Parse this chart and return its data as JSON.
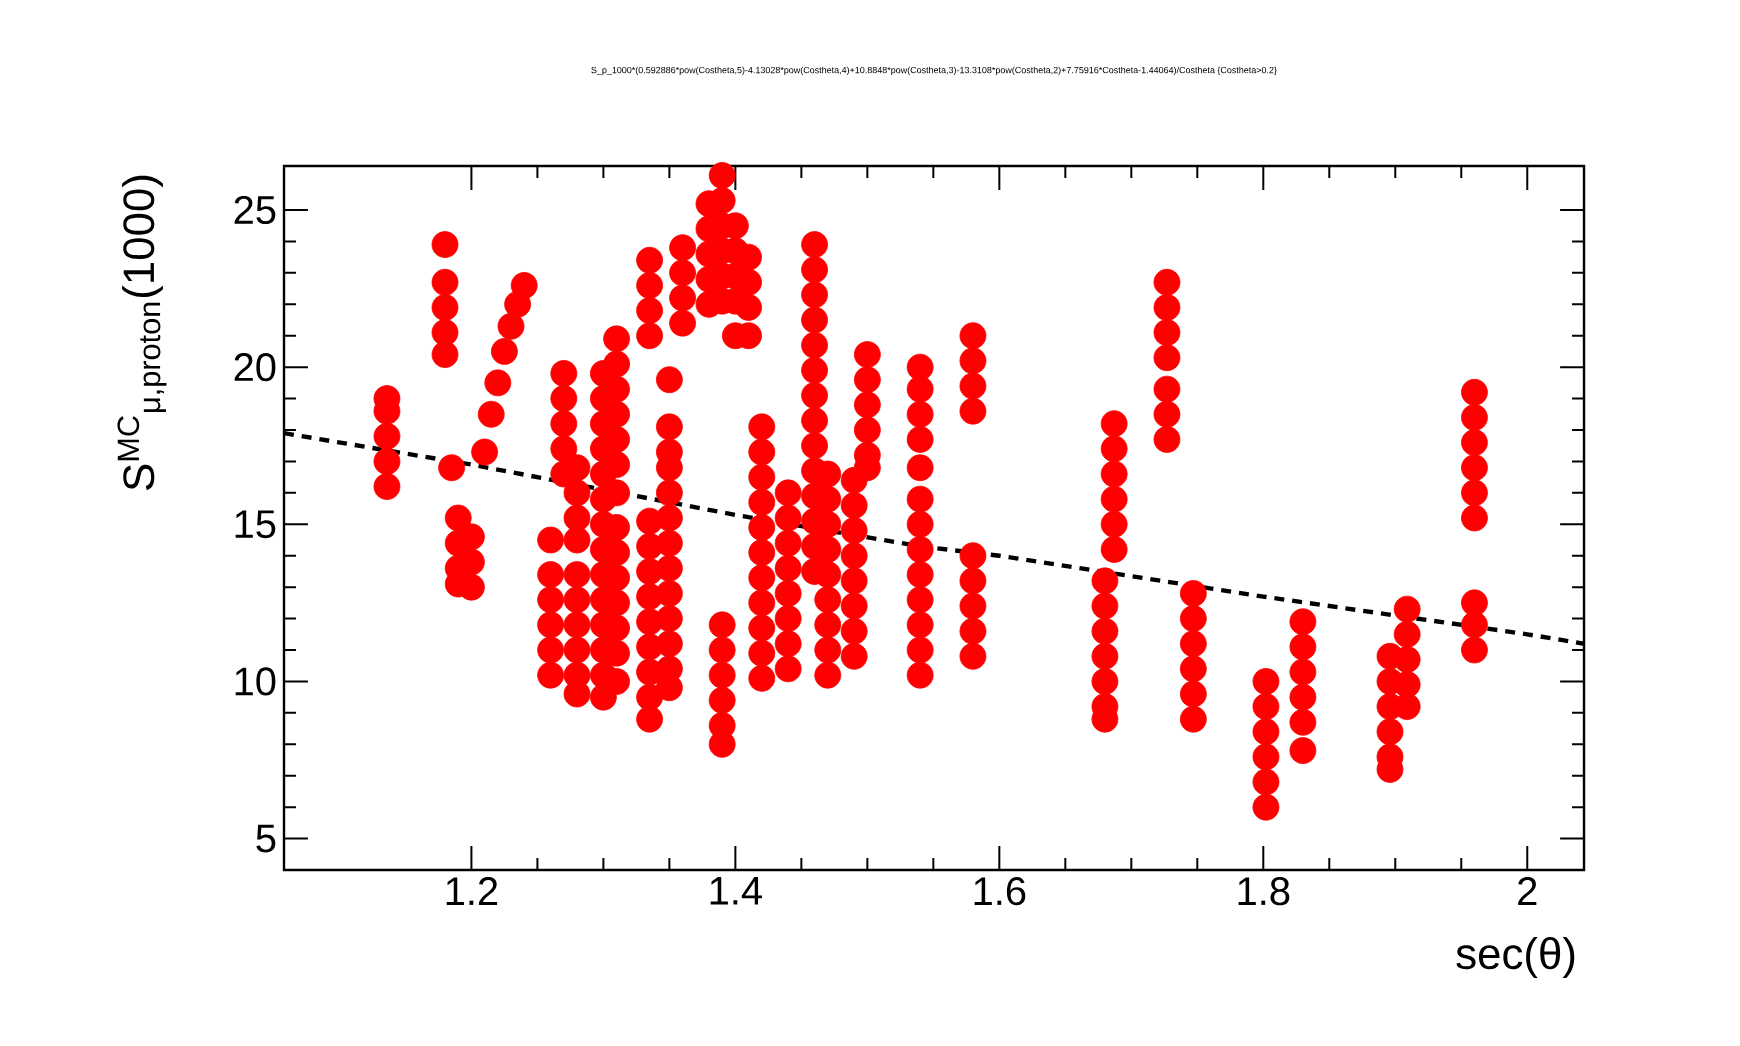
{
  "chart_data": {
    "type": "scatter",
    "title": "S_p_1000*(0.592886*pow(Costheta,5)-4.13028*pow(Costheta,4)+10.8848*pow(Costheta,3)-13.3108*pow(Costheta,2)+7.75916*Costheta-1.44064)/Costheta {Costheta>0.2}",
    "xlabel": "sec(θ)",
    "ylabel": "S$^{MC}$$_{μ,proton}$(1000)",
    "xlim": [
      1.058,
      2.043
    ],
    "ylim": [
      4,
      26.4
    ],
    "xticks": [
      1.2,
      1.4,
      1.6,
      1.8,
      2
    ],
    "yticks": [
      5,
      10,
      15,
      20,
      25
    ],
    "series": [
      {
        "color": "#ff0000",
        "marker": "circle",
        "x": [
          1.136,
          1.136,
          1.136,
          1.136,
          1.136,
          1.18,
          1.18,
          1.18,
          1.18,
          1.18,
          1.185,
          1.19,
          1.19,
          1.19,
          1.19,
          1.2,
          1.2,
          1.2,
          1.21,
          1.215,
          1.22,
          1.225,
          1.23,
          1.235,
          1.24,
          1.26,
          1.26,
          1.26,
          1.26,
          1.26,
          1.26,
          1.27,
          1.27,
          1.27,
          1.27,
          1.27,
          1.28,
          1.28,
          1.28,
          1.28,
          1.28,
          1.28,
          1.28,
          1.28,
          1.28,
          1.28,
          1.3,
          1.3,
          1.3,
          1.3,
          1.3,
          1.3,
          1.3,
          1.3,
          1.3,
          1.3,
          1.3,
          1.3,
          1.3,
          1.3,
          1.31,
          1.31,
          1.31,
          1.31,
          1.31,
          1.31,
          1.31,
          1.31,
          1.31,
          1.31,
          1.31,
          1.31,
          1.31,
          1.31,
          1.335,
          1.335,
          1.335,
          1.335,
          1.335,
          1.335,
          1.335,
          1.335,
          1.335,
          1.335,
          1.335,
          1.335,
          1.335,
          1.35,
          1.35,
          1.35,
          1.35,
          1.35,
          1.35,
          1.35,
          1.35,
          1.35,
          1.35,
          1.35,
          1.35,
          1.35,
          1.36,
          1.36,
          1.36,
          1.36,
          1.38,
          1.38,
          1.38,
          1.38,
          1.38,
          1.39,
          1.39,
          1.39,
          1.39,
          1.39,
          1.39,
          1.39,
          1.39,
          1.39,
          1.39,
          1.39,
          1.39,
          1.4,
          1.4,
          1.4,
          1.4,
          1.4,
          1.41,
          1.41,
          1.41,
          1.41,
          1.42,
          1.42,
          1.42,
          1.42,
          1.42,
          1.42,
          1.42,
          1.42,
          1.42,
          1.42,
          1.42,
          1.44,
          1.44,
          1.44,
          1.44,
          1.44,
          1.44,
          1.44,
          1.44,
          1.46,
          1.46,
          1.46,
          1.46,
          1.46,
          1.46,
          1.46,
          1.46,
          1.46,
          1.46,
          1.46,
          1.46,
          1.46,
          1.46,
          1.47,
          1.47,
          1.47,
          1.47,
          1.47,
          1.47,
          1.47,
          1.47,
          1.47,
          1.49,
          1.49,
          1.49,
          1.49,
          1.49,
          1.49,
          1.49,
          1.49,
          1.5,
          1.5,
          1.5,
          1.5,
          1.5,
          1.5,
          1.54,
          1.54,
          1.54,
          1.54,
          1.54,
          1.54,
          1.54,
          1.54,
          1.54,
          1.54,
          1.54,
          1.54,
          1.54,
          1.58,
          1.58,
          1.58,
          1.58,
          1.58,
          1.58,
          1.58,
          1.58,
          1.58,
          1.687,
          1.687,
          1.687,
          1.687,
          1.687,
          1.687,
          1.68,
          1.68,
          1.68,
          1.68,
          1.68,
          1.68,
          1.68,
          1.727,
          1.727,
          1.727,
          1.727,
          1.727,
          1.727,
          1.727,
          1.747,
          1.747,
          1.747,
          1.747,
          1.747,
          1.747,
          1.802,
          1.802,
          1.802,
          1.802,
          1.802,
          1.802,
          1.83,
          1.83,
          1.83,
          1.83,
          1.83,
          1.83,
          1.896,
          1.896,
          1.896,
          1.896,
          1.896,
          1.896,
          1.909,
          1.909,
          1.909,
          1.909,
          1.909,
          1.96,
          1.96,
          1.96,
          1.96,
          1.96,
          1.96,
          1.96,
          1.96,
          1.96
        ],
        "values": [
          16.2,
          17.0,
          17.8,
          18.6,
          19.0,
          23.9,
          22.7,
          21.9,
          21.1,
          20.4,
          16.8,
          15.2,
          14.4,
          13.6,
          13.1,
          14.6,
          13.8,
          13.0,
          17.3,
          18.5,
          19.5,
          20.5,
          21.3,
          22.0,
          22.6,
          14.5,
          13.4,
          12.6,
          11.8,
          11.0,
          10.2,
          19.8,
          19.0,
          18.2,
          17.4,
          16.6,
          16.8,
          16.0,
          15.2,
          14.5,
          13.4,
          12.6,
          11.8,
          11.0,
          10.2,
          9.6,
          19.8,
          19.0,
          18.2,
          17.4,
          16.6,
          15.8,
          15.0,
          14.2,
          13.4,
          12.6,
          11.8,
          11.0,
          10.2,
          9.5,
          20.9,
          20.1,
          19.3,
          18.5,
          17.7,
          16.9,
          16.0,
          14.9,
          14.1,
          13.3,
          12.5,
          11.7,
          10.9,
          10.0,
          23.4,
          22.6,
          21.8,
          21.0,
          15.1,
          14.3,
          13.5,
          12.7,
          11.9,
          11.1,
          10.3,
          9.5,
          8.8,
          19.6,
          18.1,
          17.3,
          16.8,
          16.0,
          15.2,
          14.4,
          13.6,
          12.8,
          12.0,
          11.2,
          10.4,
          9.8,
          23.8,
          23.0,
          22.2,
          21.4,
          25.2,
          24.4,
          23.6,
          22.8,
          22.0,
          26.1,
          25.3,
          24.5,
          23.7,
          22.9,
          22.1,
          11.8,
          11.0,
          10.2,
          9.4,
          8.6,
          8.0,
          24.5,
          23.7,
          22.9,
          22.1,
          21.0,
          23.5,
          22.7,
          21.9,
          21.0,
          18.1,
          17.3,
          16.5,
          15.7,
          14.9,
          14.1,
          13.3,
          12.5,
          11.7,
          10.9,
          10.1,
          16.0,
          15.2,
          14.4,
          13.6,
          12.8,
          12.0,
          11.2,
          10.4,
          23.9,
          23.1,
          22.3,
          21.5,
          20.7,
          19.9,
          19.1,
          18.3,
          17.5,
          16.7,
          15.9,
          15.1,
          14.3,
          13.5,
          16.6,
          15.8,
          15.0,
          14.2,
          13.4,
          12.6,
          11.8,
          11.0,
          10.2,
          16.4,
          15.6,
          14.8,
          14.0,
          13.2,
          12.4,
          11.6,
          10.8,
          20.4,
          19.6,
          18.8,
          18.0,
          17.2,
          16.8,
          20.0,
          19.3,
          18.5,
          17.7,
          16.8,
          15.8,
          15.0,
          14.2,
          13.4,
          12.6,
          11.8,
          11.0,
          10.2,
          21.0,
          20.2,
          19.4,
          18.6,
          14.0,
          13.2,
          12.4,
          11.6,
          10.8,
          18.2,
          17.4,
          16.6,
          15.8,
          15.0,
          14.2,
          13.2,
          12.4,
          11.6,
          10.8,
          10.0,
          9.2,
          8.8,
          22.7,
          21.9,
          21.1,
          20.3,
          19.3,
          18.5,
          17.7,
          12.8,
          12.0,
          11.2,
          10.4,
          9.6,
          8.8,
          10.0,
          9.2,
          8.4,
          7.6,
          6.8,
          6.0,
          11.9,
          11.1,
          10.3,
          9.5,
          8.7,
          7.8,
          10.8,
          10.0,
          9.2,
          8.4,
          7.6,
          7.2,
          12.3,
          11.5,
          10.7,
          9.9,
          9.2,
          19.2,
          18.4,
          17.6,
          16.8,
          16.0,
          15.2,
          12.5,
          11.8,
          11.0
        ]
      },
      {
        "type": "line",
        "color": "#000000",
        "line_style": "dashed",
        "marker": "none",
        "x": [
          1.058,
          1.2,
          1.4,
          1.54,
          1.6,
          1.8,
          2.0,
          2.043
        ],
        "values": [
          17.9,
          16.9,
          15.3,
          14.3,
          14.0,
          12.7,
          11.5,
          11.2
        ]
      }
    ]
  }
}
